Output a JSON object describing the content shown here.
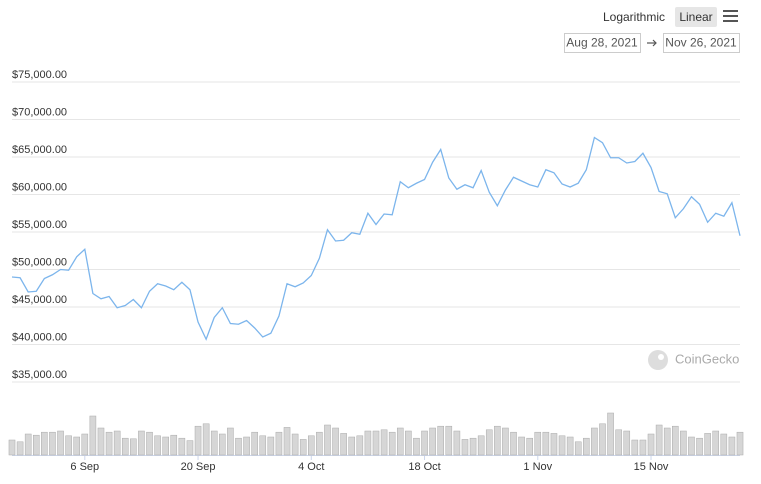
{
  "controls": {
    "scale_options": [
      "Logarithmic",
      "Linear"
    ],
    "active": 1
  },
  "range": {
    "from": "Aug 28, 2021",
    "to": "Nov 26, 2021"
  },
  "watermark": "CoinGecko",
  "chart_data": {
    "type": "line",
    "x": [
      "2021-08-28",
      "2021-08-29",
      "2021-08-30",
      "2021-08-31",
      "2021-09-01",
      "2021-09-02",
      "2021-09-03",
      "2021-09-04",
      "2021-09-05",
      "2021-09-06",
      "2021-09-07",
      "2021-09-08",
      "2021-09-09",
      "2021-09-10",
      "2021-09-11",
      "2021-09-12",
      "2021-09-13",
      "2021-09-14",
      "2021-09-15",
      "2021-09-16",
      "2021-09-17",
      "2021-09-18",
      "2021-09-19",
      "2021-09-20",
      "2021-09-21",
      "2021-09-22",
      "2021-09-23",
      "2021-09-24",
      "2021-09-25",
      "2021-09-26",
      "2021-09-27",
      "2021-09-28",
      "2021-09-29",
      "2021-09-30",
      "2021-10-01",
      "2021-10-02",
      "2021-10-03",
      "2021-10-04",
      "2021-10-05",
      "2021-10-06",
      "2021-10-07",
      "2021-10-08",
      "2021-10-09",
      "2021-10-10",
      "2021-10-11",
      "2021-10-12",
      "2021-10-13",
      "2021-10-14",
      "2021-10-15",
      "2021-10-16",
      "2021-10-17",
      "2021-10-18",
      "2021-10-19",
      "2021-10-20",
      "2021-10-21",
      "2021-10-22",
      "2021-10-23",
      "2021-10-24",
      "2021-10-25",
      "2021-10-26",
      "2021-10-27",
      "2021-10-28",
      "2021-10-29",
      "2021-10-30",
      "2021-10-31",
      "2021-11-01",
      "2021-11-02",
      "2021-11-03",
      "2021-11-04",
      "2021-11-05",
      "2021-11-06",
      "2021-11-07",
      "2021-11-08",
      "2021-11-09",
      "2021-11-10",
      "2021-11-11",
      "2021-11-12",
      "2021-11-13",
      "2021-11-14",
      "2021-11-15",
      "2021-11-16",
      "2021-11-17",
      "2021-11-18",
      "2021-11-19",
      "2021-11-20",
      "2021-11-21",
      "2021-11-22",
      "2021-11-23",
      "2021-11-24",
      "2021-11-25",
      "2021-11-26"
    ],
    "series": [
      {
        "color": "#7cb5ec",
        "values": [
          49000,
          48900,
          47000,
          47100,
          48800,
          49300,
          50000,
          49900,
          51700,
          52700,
          46800,
          46100,
          46400,
          44900,
          45200,
          46000,
          44900,
          47100,
          48100,
          47800,
          47300,
          48300,
          47300,
          43000,
          40700,
          43600,
          44900,
          42800,
          42700,
          43200,
          42200,
          41000,
          41500,
          43800,
          48100,
          47700,
          48200,
          49200,
          51500,
          55300,
          53800,
          53900,
          54900,
          54700,
          57500,
          56000,
          57400,
          57300,
          61700,
          60900,
          61500,
          62000,
          64300,
          66000,
          62200,
          60700,
          61300,
          60900,
          63200,
          60300,
          58500,
          60600,
          62300,
          61800,
          61300,
          61000,
          63300,
          62900,
          61400,
          61000,
          61500,
          63300,
          67600,
          66900,
          64900,
          64900,
          64200,
          64400,
          65500,
          63600,
          60400,
          60100,
          56900,
          58100,
          59700,
          58700,
          56300,
          57500,
          57100,
          58900,
          54500
        ]
      },
      {
        "type": "bar",
        "color": "#d6d6d6",
        "values": [
          25,
          22,
          35,
          33,
          38,
          38,
          40,
          32,
          30,
          35,
          65,
          45,
          38,
          40,
          28,
          27,
          40,
          38,
          32,
          30,
          33,
          28,
          24,
          48,
          52,
          40,
          35,
          45,
          28,
          30,
          38,
          32,
          30,
          38,
          46,
          35,
          26,
          32,
          38,
          50,
          45,
          36,
          30,
          32,
          40,
          40,
          42,
          38,
          45,
          40,
          28,
          40,
          45,
          48,
          48,
          40,
          26,
          28,
          32,
          42,
          48,
          45,
          38,
          30,
          28,
          38,
          38,
          36,
          32,
          30,
          22,
          28,
          45,
          52,
          70,
          42,
          40,
          25,
          25,
          35,
          50,
          45,
          48,
          40,
          30,
          28,
          36,
          40,
          35,
          30,
          38
        ]
      }
    ],
    "xlim": [
      "2021-08-28",
      "2021-11-26"
    ],
    "xticks": [
      {
        "value": "2021-09-06",
        "label": "6 Sep"
      },
      {
        "value": "2021-09-20",
        "label": "20 Sep"
      },
      {
        "value": "2021-10-04",
        "label": "4 Oct"
      },
      {
        "value": "2021-10-18",
        "label": "18 Oct"
      },
      {
        "value": "2021-11-01",
        "label": "1 Nov"
      },
      {
        "value": "2021-11-15",
        "label": "15 Nov"
      }
    ],
    "ylim": [
      32000,
      78000
    ],
    "yticks": [
      {
        "value": 35000,
        "label": "$35,000.00"
      },
      {
        "value": 40000,
        "label": "$40,000.00"
      },
      {
        "value": 45000,
        "label": "$45,000.00"
      },
      {
        "value": 50000,
        "label": "$50,000.00"
      },
      {
        "value": 55000,
        "label": "$55,000.00"
      },
      {
        "value": 60000,
        "label": "$60,000.00"
      },
      {
        "value": 65000,
        "label": "$65,000.00"
      },
      {
        "value": 70000,
        "label": "$70,000.00"
      },
      {
        "value": 75000,
        "label": "$75,000.00"
      }
    ],
    "grid": true
  }
}
